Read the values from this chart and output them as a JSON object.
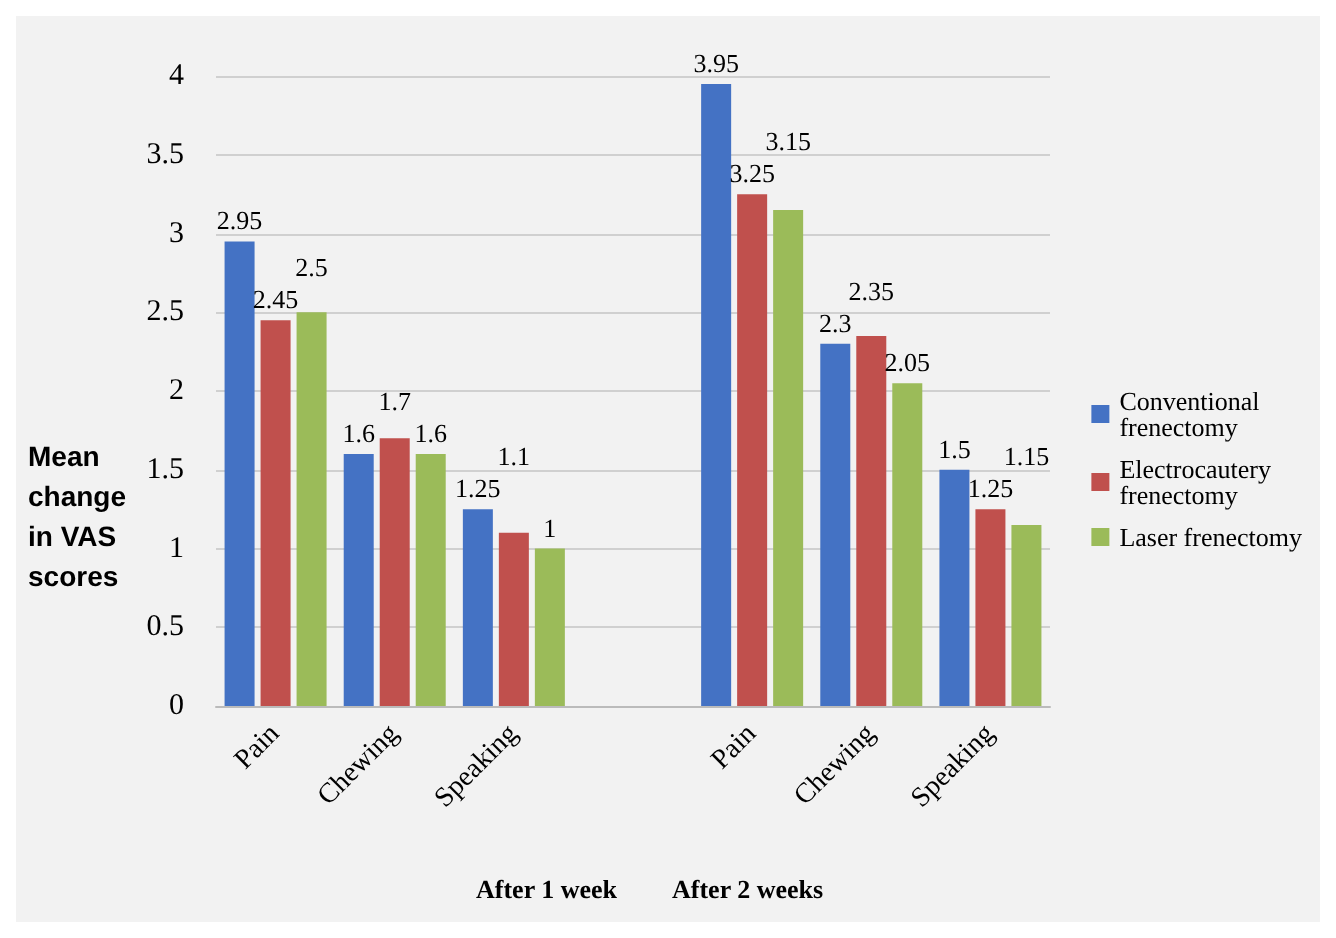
{
  "chart_data": {
    "type": "bar",
    "categories": [
      "Pain",
      "Chewing",
      "Speaking",
      null,
      "Pain",
      "Chewing",
      "Speaking"
    ],
    "series": [
      {
        "name": "Conventional frenectomy",
        "color": "#4472c4",
        "values": [
          2.95,
          1.6,
          1.25,
          null,
          3.95,
          2.3,
          1.5
        ]
      },
      {
        "name": "Electrocautery frenectomy",
        "color": "#c0504d",
        "values": [
          2.45,
          1.7,
          1.1,
          null,
          3.25,
          2.35,
          1.25
        ]
      },
      {
        "name": "Laser frenectomy",
        "color": "#9bbb59",
        "values": [
          2.5,
          1.6,
          1,
          null,
          3.15,
          2.05,
          1.15
        ]
      }
    ],
    "ylabel": "Mean change in VAS scores",
    "annotations": [
      "After 1 week",
      "After 2 weeks"
    ],
    "ylim": [
      0,
      4
    ],
    "yticks": [
      0,
      0.5,
      1,
      1.5,
      2,
      2.5,
      3,
      3.5,
      4
    ],
    "grid": "y",
    "legend": "right",
    "data_labels": true
  }
}
